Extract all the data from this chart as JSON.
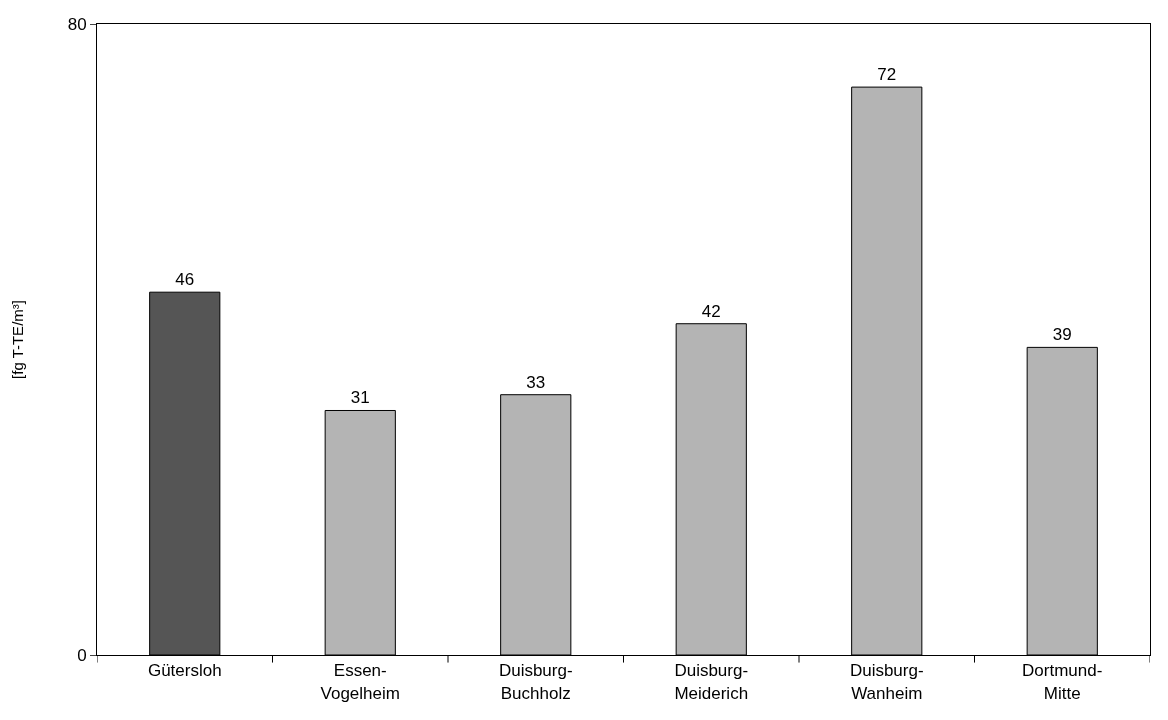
{
  "chart_data": {
    "type": "bar",
    "ylabel": "[fg T-TE/m³]",
    "categories": [
      "Gütersloh",
      "Essen-Vogelheim",
      "Duisburg-Buchholz",
      "Duisburg-Meiderich",
      "Duisburg-Wanheim",
      "Dortmund-Mitte"
    ],
    "values": [
      46,
      31,
      33,
      42,
      72,
      39
    ],
    "colors": [
      "#555555",
      "#b4b4b4",
      "#b4b4b4",
      "#b4b4b4",
      "#b4b4b4",
      "#b4b4b4"
    ],
    "ylim": [
      0,
      80
    ],
    "yticks": [
      0,
      80
    ],
    "data_labels": true
  }
}
